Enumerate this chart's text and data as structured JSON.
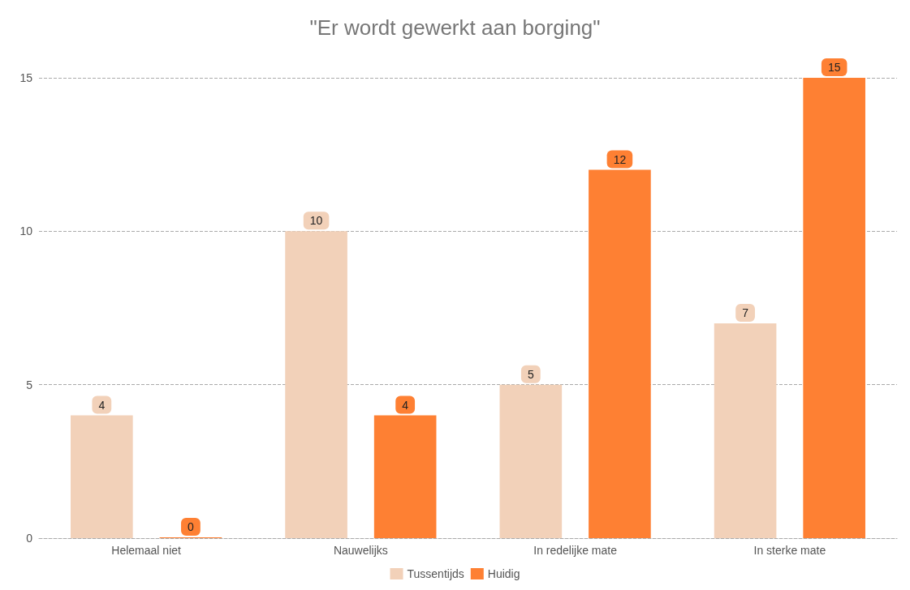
{
  "chart_data": {
    "type": "bar",
    "title": "\"Er wordt gewerkt aan borging\"",
    "categories": [
      "Helemaal niet",
      "Nauwelijks",
      "In redelijke mate",
      "In sterke mate"
    ],
    "series": [
      {
        "name": "Tussentijds",
        "color": "#f2d1b9",
        "values": [
          4,
          10,
          5,
          7
        ]
      },
      {
        "name": "Huidig",
        "color": "#fe8033",
        "values": [
          0,
          4,
          12,
          15
        ]
      }
    ],
    "ylim": [
      0,
      15
    ],
    "yticks": [
      0,
      5,
      10,
      15
    ],
    "grid": "y",
    "legend": "bottom",
    "data_labels": true
  }
}
